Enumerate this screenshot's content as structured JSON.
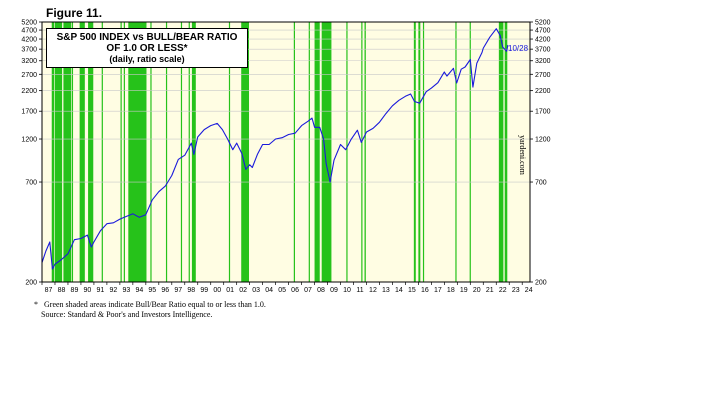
{
  "figure_label": "Figure 11.",
  "footnote": {
    "marker": "*",
    "line1": "Green shaded areas indicate Bull/Bear Ratio equal to or less than 1.0.",
    "line2": "Source: Standard & Poor's and Investors Intelligence."
  },
  "watermark": "yardeni.com",
  "colors": {
    "background": "#fffde3",
    "shade": "#26c21a",
    "line": "#1a1adb",
    "grid": "#c8c8c8"
  },
  "chart_data": {
    "type": "line",
    "title": "S&P 500 INDEX vs BULL/BEAR RATIO",
    "title_line2": "OF 1.0 OR LESS*",
    "subtitle": "(daily, ratio scale)",
    "scale": "log",
    "ylim": [
      200,
      5200
    ],
    "xlim": [
      1987.0,
      2024.6
    ],
    "y_ticks": [
      200,
      700,
      1200,
      1700,
      2200,
      2700,
      3200,
      3700,
      4200,
      4700,
      5200
    ],
    "x_tick_labels": [
      "87",
      "88",
      "89",
      "90",
      "91",
      "92",
      "93",
      "94",
      "95",
      "96",
      "97",
      "98",
      "99",
      "00",
      "01",
      "02",
      "03",
      "04",
      "05",
      "06",
      "07",
      "08",
      "09",
      "10",
      "11",
      "12",
      "13",
      "14",
      "15",
      "16",
      "17",
      "18",
      "19",
      "20",
      "21",
      "22",
      "23",
      "24"
    ],
    "annotation": "10/28",
    "grid": true,
    "series": [
      {
        "values": [
          [
            1987.0,
            255
          ],
          [
            1987.3,
            295
          ],
          [
            1987.6,
            330
          ],
          [
            1987.8,
            235
          ],
          [
            1988.0,
            250
          ],
          [
            1988.5,
            265
          ],
          [
            1989.0,
            285
          ],
          [
            1989.5,
            340
          ],
          [
            1990.0,
            345
          ],
          [
            1990.5,
            360
          ],
          [
            1990.8,
            310
          ],
          [
            1991.0,
            330
          ],
          [
            1991.5,
            380
          ],
          [
            1992.0,
            415
          ],
          [
            1992.5,
            420
          ],
          [
            1993.0,
            440
          ],
          [
            1993.5,
            455
          ],
          [
            1994.0,
            470
          ],
          [
            1994.5,
            450
          ],
          [
            1995.0,
            465
          ],
          [
            1995.5,
            560
          ],
          [
            1996.0,
            620
          ],
          [
            1996.5,
            665
          ],
          [
            1997.0,
            760
          ],
          [
            1997.5,
            930
          ],
          [
            1998.0,
            980
          ],
          [
            1998.5,
            1140
          ],
          [
            1998.7,
            990
          ],
          [
            1999.0,
            1230
          ],
          [
            1999.5,
            1350
          ],
          [
            2000.0,
            1420
          ],
          [
            2000.5,
            1460
          ],
          [
            2000.9,
            1350
          ],
          [
            2001.3,
            1200
          ],
          [
            2001.7,
            1050
          ],
          [
            2002.0,
            1140
          ],
          [
            2002.4,
            1000
          ],
          [
            2002.7,
            820
          ],
          [
            2003.0,
            870
          ],
          [
            2003.2,
            840
          ],
          [
            2003.6,
            990
          ],
          [
            2004.0,
            1120
          ],
          [
            2004.5,
            1120
          ],
          [
            2005.0,
            1200
          ],
          [
            2005.5,
            1220
          ],
          [
            2006.0,
            1270
          ],
          [
            2006.5,
            1290
          ],
          [
            2007.0,
            1420
          ],
          [
            2007.5,
            1500
          ],
          [
            2007.8,
            1560
          ],
          [
            2008.0,
            1390
          ],
          [
            2008.4,
            1390
          ],
          [
            2008.7,
            1200
          ],
          [
            2008.9,
            880
          ],
          [
            2009.2,
            700
          ],
          [
            2009.5,
            920
          ],
          [
            2010.0,
            1120
          ],
          [
            2010.4,
            1050
          ],
          [
            2010.8,
            1190
          ],
          [
            2011.3,
            1340
          ],
          [
            2011.6,
            1150
          ],
          [
            2012.0,
            1310
          ],
          [
            2012.5,
            1370
          ],
          [
            2013.0,
            1480
          ],
          [
            2013.5,
            1650
          ],
          [
            2014.0,
            1820
          ],
          [
            2014.5,
            1950
          ],
          [
            2015.0,
            2050
          ],
          [
            2015.4,
            2110
          ],
          [
            2015.7,
            1920
          ],
          [
            2016.1,
            1880
          ],
          [
            2016.6,
            2170
          ],
          [
            2017.0,
            2270
          ],
          [
            2017.5,
            2430
          ],
          [
            2018.0,
            2780
          ],
          [
            2018.2,
            2640
          ],
          [
            2018.7,
            2910
          ],
          [
            2018.95,
            2420
          ],
          [
            2019.3,
            2880
          ],
          [
            2019.6,
            2960
          ],
          [
            2020.0,
            3250
          ],
          [
            2020.2,
            2300
          ],
          [
            2020.5,
            3100
          ],
          [
            2020.9,
            3550
          ],
          [
            2021.0,
            3750
          ],
          [
            2021.5,
            4300
          ],
          [
            2022.0,
            4780
          ],
          [
            2022.3,
            4400
          ],
          [
            2022.5,
            3800
          ],
          [
            2022.8,
            3600
          ],
          [
            2022.9,
            3900
          ]
        ]
      }
    ],
    "shaded_periods": [
      [
        1987.75,
        1987.95
      ],
      [
        1988.0,
        1988.55
      ],
      [
        1988.65,
        1989.25
      ],
      [
        1989.3,
        1989.35
      ],
      [
        1989.9,
        1990.3
      ],
      [
        1990.55,
        1990.95
      ],
      [
        1991.6,
        1991.65
      ],
      [
        1993.05,
        1993.1
      ],
      [
        1993.3,
        1993.35
      ],
      [
        1993.65,
        1995.05
      ],
      [
        1995.35,
        1995.4
      ],
      [
        1996.55,
        1996.6
      ],
      [
        1997.7,
        1997.75
      ],
      [
        1998.3,
        1998.35
      ],
      [
        1998.55,
        1998.85
      ],
      [
        2001.4,
        2001.45
      ],
      [
        2002.35,
        2002.95
      ],
      [
        2006.4,
        2006.45
      ],
      [
        2007.55,
        2007.6
      ],
      [
        2008.0,
        2008.4
      ],
      [
        2008.55,
        2009.3
      ],
      [
        2010.45,
        2010.5
      ],
      [
        2011.6,
        2011.65
      ],
      [
        2011.85,
        2011.95
      ],
      [
        2015.65,
        2015.8
      ],
      [
        2016.0,
        2016.15
      ],
      [
        2016.35,
        2016.4
      ],
      [
        2018.85,
        2018.9
      ],
      [
        2019.95,
        2020.0
      ],
      [
        2022.2,
        2022.55
      ],
      [
        2022.65,
        2022.85
      ]
    ]
  }
}
